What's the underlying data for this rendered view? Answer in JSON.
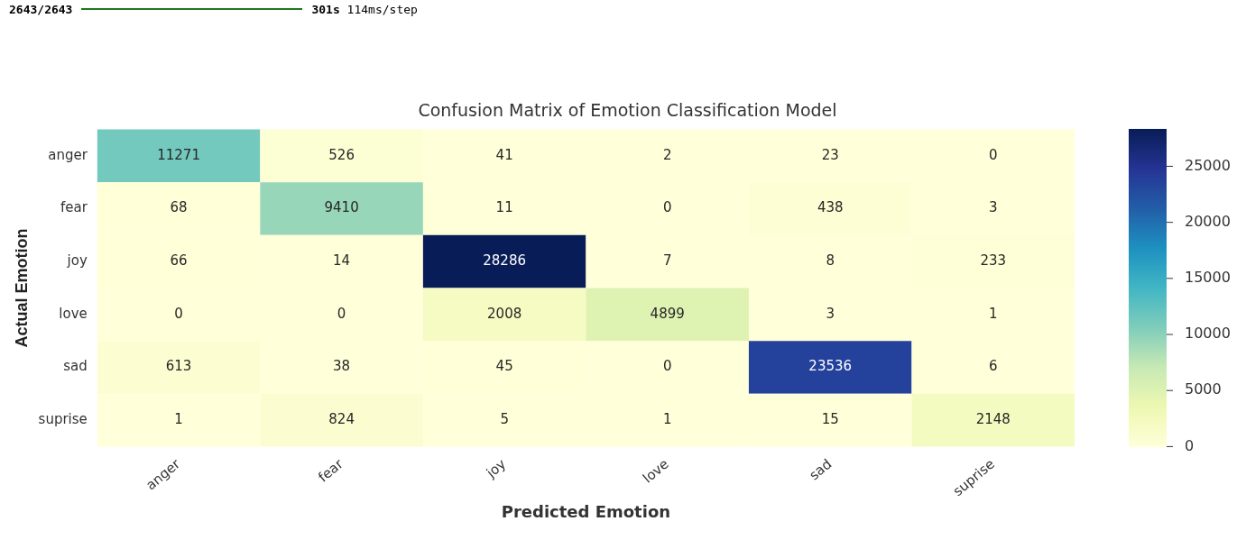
{
  "chart_data": {
    "type": "heatmap",
    "title": "Confusion Matrix of Emotion Classification Model",
    "xlabel": "Predicted Emotion",
    "ylabel": "Actual Emotion",
    "annotations": [
      "2643/2643",
      "301s 114ms/step"
    ],
    "categories": [
      "anger",
      "fear",
      "joy",
      "love",
      "sad",
      "suprise"
    ],
    "y_categories": [
      "anger",
      "fear",
      "joy",
      "love",
      "sad",
      "suprise"
    ],
    "cells": [
      [
        11271,
        526,
        41,
        2,
        23,
        0
      ],
      [
        68,
        9410,
        11,
        0,
        438,
        3
      ],
      [
        66,
        14,
        28286,
        7,
        8,
        233
      ],
      [
        0,
        0,
        2008,
        4899,
        3,
        1
      ],
      [
        613,
        38,
        45,
        0,
        23536,
        6
      ],
      [
        1,
        824,
        5,
        1,
        15,
        2148
      ]
    ],
    "clim": [
      0,
      28286
    ],
    "cticks": [
      0,
      5000,
      10000,
      15000,
      20000,
      25000
    ],
    "data_labels": true
  }
}
